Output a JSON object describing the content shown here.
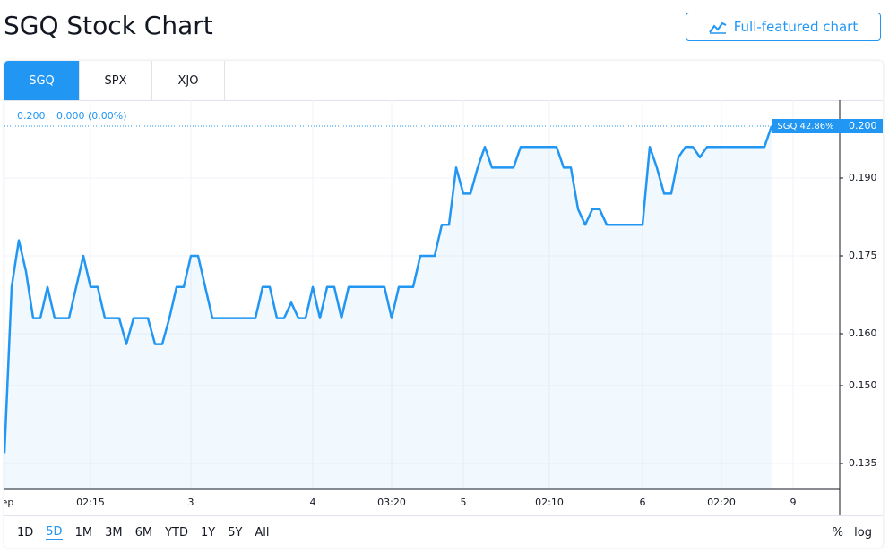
{
  "header": {
    "title": "SGQ Stock Chart",
    "button": "Full-featured chart"
  },
  "tabs": {
    "items": [
      "SGQ",
      "SPX",
      "XJO"
    ],
    "active": 0
  },
  "toolbar": {
    "ranges": [
      "1D",
      "5D",
      "1M",
      "3M",
      "6M",
      "YTD",
      "1Y",
      "5Y",
      "All"
    ],
    "active": 1,
    "percent": "%",
    "log": "log"
  },
  "chart_data": {
    "type": "line",
    "legend_price": "0.200",
    "legend_change": "0.000 (0.00%)",
    "price_line": {
      "value": 0.2,
      "label": "0.200",
      "tag": "SGQ 42.86%"
    },
    "categories": [
      "Sep",
      null,
      null,
      null,
      null,
      null,
      null,
      null,
      null,
      null,
      null,
      null,
      "02:15",
      null,
      null,
      null,
      null,
      null,
      null,
      null,
      null,
      null,
      null,
      null,
      null,
      null,
      "3",
      null,
      null,
      null,
      null,
      null,
      null,
      null,
      null,
      null,
      null,
      null,
      null,
      null,
      null,
      null,
      null,
      "4",
      null,
      null,
      null,
      null,
      null,
      null,
      null,
      null,
      null,
      null,
      "03:20",
      null,
      null,
      null,
      null,
      null,
      null,
      null,
      null,
      null,
      "5",
      null,
      null,
      null,
      null,
      null,
      null,
      null,
      null,
      null,
      null,
      null,
      "02:10",
      null,
      null,
      null,
      null,
      null,
      null,
      null,
      null,
      null,
      null,
      null,
      null,
      "6",
      null,
      null,
      null,
      null,
      null,
      null,
      null,
      null,
      null,
      null,
      "02:20",
      null,
      null,
      null,
      null,
      null,
      null,
      null,
      null,
      null,
      "9"
    ],
    "series": [
      {
        "name": "SGQ",
        "color": "#2196f3",
        "values": [
          0.137,
          0.169,
          0.178,
          0.172,
          0.163,
          0.163,
          0.169,
          0.163,
          0.163,
          0.163,
          0.169,
          0.175,
          0.169,
          0.169,
          0.163,
          0.163,
          0.163,
          0.158,
          0.163,
          0.163,
          0.163,
          0.158,
          0.158,
          0.163,
          0.169,
          0.169,
          0.175,
          0.175,
          0.169,
          0.163,
          0.163,
          0.163,
          0.163,
          0.163,
          0.163,
          0.163,
          0.169,
          0.169,
          0.163,
          0.163,
          0.166,
          0.163,
          0.163,
          0.169,
          0.163,
          0.169,
          0.169,
          0.163,
          0.169,
          0.169,
          0.169,
          0.169,
          0.169,
          0.169,
          0.163,
          0.169,
          0.169,
          0.169,
          0.175,
          0.175,
          0.175,
          0.181,
          0.181,
          0.192,
          0.187,
          0.187,
          0.192,
          0.196,
          0.192,
          0.192,
          0.192,
          0.192,
          0.196,
          0.196,
          0.196,
          0.196,
          0.196,
          0.196,
          0.192,
          0.192,
          0.184,
          0.181,
          0.184,
          0.184,
          0.181,
          0.181,
          0.181,
          0.181,
          0.181,
          0.181,
          0.196,
          0.192,
          0.187,
          0.187,
          0.194,
          0.196,
          0.196,
          0.194,
          0.196,
          0.196,
          0.196,
          0.196,
          0.196,
          0.196,
          0.196,
          0.196,
          0.196,
          0.2,
          null,
          null,
          null
        ]
      }
    ],
    "ylim": [
      0.13,
      0.205
    ],
    "yticks": [
      {
        "value": 0.135,
        "label": "0.135"
      },
      {
        "value": 0.15,
        "label": "0.150"
      },
      {
        "value": 0.16,
        "label": "0.160"
      },
      {
        "value": 0.175,
        "label": "0.175"
      },
      {
        "value": 0.19,
        "label": "0.190"
      }
    ],
    "grid": true
  }
}
